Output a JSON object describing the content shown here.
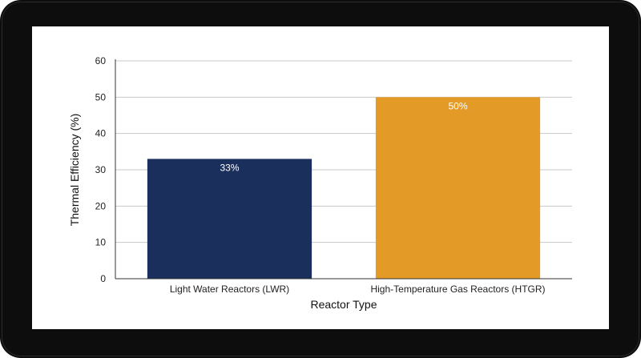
{
  "chart_data": {
    "type": "bar",
    "categories": [
      "Light Water Reactors (LWR)",
      "High-Temperature Gas Reactors (HTGR)"
    ],
    "values": [
      33,
      50
    ],
    "data_labels": [
      "33%",
      "50%"
    ],
    "colors": [
      "#1b2f5c",
      "#e39a27"
    ],
    "title": "",
    "xlabel": "Reactor Type",
    "ylabel": "Thermal Efficiency (%)",
    "ylim": [
      0,
      60
    ],
    "yticks": [
      0,
      10,
      20,
      30,
      40,
      50,
      60
    ],
    "grid": true,
    "legend": "none"
  }
}
